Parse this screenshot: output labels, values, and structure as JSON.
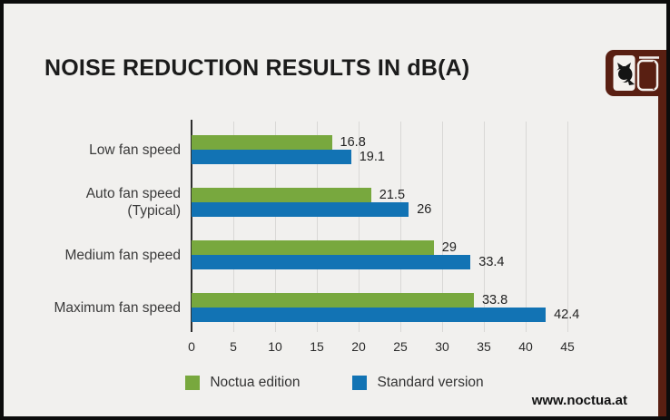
{
  "header": {
    "title": "NOISE REDUCTION RESULTS IN dB(A)"
  },
  "footer": {
    "website": "www.noctua.at"
  },
  "logo": {
    "name": "noctua-logo",
    "bg_color": "#591f12"
  },
  "colors": {
    "background": "#f1f0ee",
    "frame_border": "#0c0c0c",
    "noctua_green": "#78a83e",
    "standard_blue": "#1273b4",
    "brand_maroon": "#591f12",
    "gridline": "#d9d8d6",
    "axis": "#2e2e2e"
  },
  "chart_data": {
    "type": "bar",
    "orientation": "horizontal",
    "title": "NOISE REDUCTION RESULTS IN dB(A)",
    "categories": [
      "Low fan speed",
      "Auto fan speed\n(Typical)",
      "Medium fan speed",
      "Maximum fan speed"
    ],
    "series": [
      {
        "name": "Noctua edition",
        "color": "#78a83e",
        "values": [
          16.8,
          21.5,
          29,
          33.8
        ]
      },
      {
        "name": "Standard version",
        "color": "#1273b4",
        "values": [
          19.1,
          26,
          33.4,
          42.4
        ]
      }
    ],
    "value_labels": [
      [
        "16.8",
        "19.1"
      ],
      [
        "21.5",
        "26"
      ],
      [
        "29",
        "33.4"
      ],
      [
        "33.8",
        "42.4"
      ]
    ],
    "xlabel": "",
    "ylabel": "",
    "xlim": [
      0,
      45
    ],
    "xticks": [
      0,
      5,
      10,
      15,
      20,
      25,
      30,
      35,
      40,
      45
    ],
    "grid": true,
    "legend_position": "bottom"
  }
}
